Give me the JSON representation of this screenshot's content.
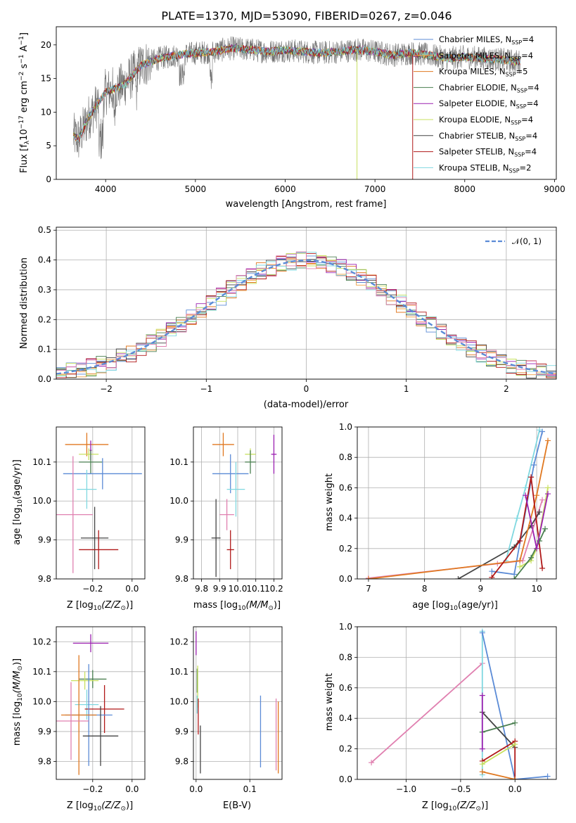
{
  "colors": {
    "chabrier_miles": "#5b8bd6",
    "salpeter_miles": "#f0a040",
    "kroupa_miles": "#e07820",
    "chabrier_elodie": "#4a7f50",
    "salpeter_elodie": "#9b20b0",
    "kroupa_elodie": "#c8e060",
    "chabrier_stelib": "#444444",
    "salpeter_stelib": "#b01818",
    "kroupa_stelib": "#80d8e0",
    "pink": "#e080b0",
    "spec_gray": "#707070",
    "normal_curve": "#5b8bd6"
  },
  "legend_spectrum": [
    {
      "label": "Chabrier MILES, N",
      "sub": "SSP",
      "tail": "=4",
      "color": "#5b8bd6"
    },
    {
      "label": "Salpeter MILES, N",
      "sub": "SSP",
      "tail": "=4",
      "color": "#f0a040"
    },
    {
      "label": "Kroupa MILES, N",
      "sub": "SSP",
      "tail": "=5",
      "color": "#e07820"
    },
    {
      "label": "Chabrier ELODIE, N",
      "sub": "SSP",
      "tail": "=4",
      "color": "#4a7f50"
    },
    {
      "label": "Salpeter ELODIE, N",
      "sub": "SSP",
      "tail": "=4",
      "color": "#9b20b0"
    },
    {
      "label": "Kroupa ELODIE, N",
      "sub": "SSP",
      "tail": "=4",
      "color": "#c8e060"
    },
    {
      "label": "Chabrier STELIB, N",
      "sub": "SSP",
      "tail": "=4",
      "color": "#444444"
    },
    {
      "label": "Salpeter STELIB, N",
      "sub": "SSP",
      "tail": "=4",
      "color": "#b01818"
    },
    {
      "label": "Kroupa STELIB, N",
      "sub": "SSP",
      "tail": "=2",
      "color": "#80d8e0"
    }
  ],
  "chart_data": [
    {
      "id": "spectrum",
      "type": "line",
      "title": "PLATE=1370, MJD=53090, FIBERID=0267, z=0.046",
      "xlabel": "wavelength [Angstrom, rest frame]",
      "ylabel": "Flux [f",
      "ylabel_sub": "λ",
      "ylabel_mid": "10",
      "ylabel_sup1": "−17",
      "ylabel_tail": " erg cm",
      "ylabel_sup2": "−2",
      "ylabel_tail2": " s",
      "ylabel_sup3": "−1",
      "ylabel_tail3": " A",
      "ylabel_sup4": "−1",
      "ylabel_end": "]",
      "xlim": [
        3450,
        9020
      ],
      "ylim": [
        0,
        22.7
      ],
      "xticks": [
        "4000",
        "5000",
        "6000",
        "7000",
        "8000",
        "9000"
      ],
      "xtick_values": [
        4000,
        5000,
        6000,
        7000,
        8000,
        9000
      ],
      "yticks": [
        "0",
        "5",
        "10",
        "15",
        "20"
      ],
      "ytick_values": [
        0,
        5,
        10,
        15,
        20
      ],
      "continuum": [
        [
          3640,
          6.5
        ],
        [
          3700,
          6
        ],
        [
          3800,
          9
        ],
        [
          3900,
          11
        ],
        [
          4000,
          13
        ],
        [
          4100,
          13.5
        ],
        [
          4200,
          14
        ],
        [
          4300,
          15.5
        ],
        [
          4400,
          17
        ],
        [
          4600,
          18
        ],
        [
          4800,
          18.5
        ],
        [
          5000,
          18.8
        ],
        [
          5200,
          19
        ],
        [
          5400,
          19.5
        ],
        [
          5600,
          19.3
        ],
        [
          5800,
          19
        ],
        [
          6000,
          19.2
        ],
        [
          6200,
          19
        ],
        [
          6400,
          18.8
        ],
        [
          6600,
          19
        ],
        [
          6800,
          19.3
        ],
        [
          7000,
          19
        ],
        [
          7200,
          18.5
        ],
        [
          7400,
          18.8
        ],
        [
          7600,
          18.5
        ],
        [
          7800,
          18
        ],
        [
          8000,
          18.2
        ],
        [
          8200,
          18
        ],
        [
          8400,
          17.8
        ],
        [
          8600,
          17.5
        ]
      ]
    },
    {
      "id": "residuals",
      "type": "line",
      "xlabel": "(data-model)/error",
      "ylabel": "Normed distribution",
      "xlim": [
        -2.5,
        2.5
      ],
      "ylim": [
        0,
        0.51
      ],
      "xticks": [
        "−2",
        "−1",
        "0",
        "1",
        "2"
      ],
      "xtick_values": [
        -2,
        -1,
        0,
        1,
        2
      ],
      "yticks": [
        "0.0",
        "0.1",
        "0.2",
        "0.3",
        "0.4",
        "0.5"
      ],
      "ytick_values": [
        0,
        0.1,
        0.2,
        0.3,
        0.4,
        0.5
      ],
      "grid": true,
      "legend": "𝒩(0, 1)",
      "legend_placement": "top-right"
    },
    {
      "id": "age-vs-Z",
      "type": "scatter",
      "xlabel": "Z [log",
      "xlabel_sub": "10",
      "xlabel_tail": "(Z/Z",
      "xlabel_sub2": "⊙",
      "xlabel_end": ")]",
      "ylabel": "age  [log",
      "ylabel_sub": "10",
      "ylabel_tail": "(age/yr)]",
      "xlim": [
        -0.385,
        0.065
      ],
      "ylim": [
        9.8,
        10.19
      ],
      "xticks": [
        "−0.2",
        "0.0"
      ],
      "xtick_values": [
        -0.2,
        0.0
      ],
      "yticks": [
        "9.8",
        "9.9",
        "10.0",
        "10.1"
      ],
      "ytick_values": [
        9.8,
        9.9,
        10.0,
        10.1
      ],
      "grid": true,
      "points": [
        {
          "x": -0.23,
          "y": 10.145,
          "xerr": 0.11,
          "yerr": 0.03,
          "color": "#e07820"
        },
        {
          "x": -0.21,
          "y": 10.13,
          "xerr": 0.005,
          "yerr": 0.025,
          "color": "#9b20b0"
        },
        {
          "x": -0.22,
          "y": 10.12,
          "xerr": 0.05,
          "yerr": 0.015,
          "color": "#c8e060"
        },
        {
          "x": -0.21,
          "y": 10.1,
          "xerr": 0.06,
          "yerr": 0.03,
          "color": "#4a7f50"
        },
        {
          "x": -0.15,
          "y": 10.07,
          "xerr": 0.2,
          "yerr": 0.04,
          "color": "#5b8bd6"
        },
        {
          "x": -0.23,
          "y": 10.03,
          "xerr": 0.05,
          "yerr": 0.05,
          "color": "#80d8e0"
        },
        {
          "x": -0.3,
          "y": 9.965,
          "xerr": 0.1,
          "yerr": 0.15,
          "color": "#e080b0"
        },
        {
          "x": -0.19,
          "y": 9.905,
          "xerr": 0.07,
          "yerr": 0.08,
          "color": "#444444"
        },
        {
          "x": -0.17,
          "y": 9.875,
          "xerr": 0.1,
          "yerr": 0.05,
          "color": "#b01818"
        }
      ]
    },
    {
      "id": "age-vs-mass",
      "type": "scatter",
      "xlabel": "mass [log",
      "xlabel_sub": "10",
      "xlabel_tail": "(M/M",
      "xlabel_sub2": "⊙",
      "xlabel_end": ")]",
      "xlim": [
        9.755,
        10.245
      ],
      "ylim": [
        9.8,
        10.19
      ],
      "xticks": [
        "9.8",
        "9.9",
        "10.0",
        "10.1",
        "10.2"
      ],
      "xtick_values": [
        9.8,
        9.9,
        10.0,
        10.1,
        10.2
      ],
      "yticks": [
        "9.8",
        "9.9",
        "10.0",
        "10.1"
      ],
      "ytick_values": [
        9.8,
        9.9,
        10.0,
        10.1
      ],
      "grid": true,
      "points": [
        {
          "x": 9.92,
          "y": 10.145,
          "xerr": 0.06,
          "yerr": 0.03,
          "color": "#e07820"
        },
        {
          "x": 10.2,
          "y": 10.12,
          "xerr": 0.015,
          "yerr": 0.05,
          "color": "#9b20b0"
        },
        {
          "x": 10.07,
          "y": 10.12,
          "xerr": 0.03,
          "yerr": 0.015,
          "color": "#c8e060"
        },
        {
          "x": 10.07,
          "y": 10.1,
          "xerr": 0.03,
          "yerr": 0.03,
          "color": "#4a7f50"
        },
        {
          "x": 9.96,
          "y": 10.07,
          "xerr": 0.1,
          "yerr": 0.05,
          "color": "#5b8bd6"
        },
        {
          "x": 9.99,
          "y": 10.03,
          "xerr": 0.05,
          "yerr": 0.07,
          "color": "#80d8e0"
        },
        {
          "x": 9.94,
          "y": 9.965,
          "xerr": 0.04,
          "yerr": 0.04,
          "color": "#e080b0"
        },
        {
          "x": 9.88,
          "y": 9.905,
          "xerr": 0.025,
          "yerr": 0.1,
          "color": "#444444"
        },
        {
          "x": 9.96,
          "y": 9.875,
          "xerr": 0.02,
          "yerr": 0.05,
          "color": "#b01818"
        }
      ]
    },
    {
      "id": "massweight-vs-age",
      "type": "line",
      "xlabel": "age  [log",
      "xlabel_sub": "10",
      "xlabel_tail": "(age/yr)]",
      "ylabel": "mass weight",
      "xlim": [
        6.8,
        10.35
      ],
      "ylim": [
        0,
        1
      ],
      "xticks": [
        "7",
        "8",
        "9",
        "10"
      ],
      "xtick_values": [
        7,
        8,
        9,
        10
      ],
      "yticks": [
        "0.0",
        "0.2",
        "0.4",
        "0.6",
        "0.8",
        "1.0"
      ],
      "ytick_values": [
        0,
        0.2,
        0.4,
        0.6,
        0.8,
        1.0
      ],
      "grid": true,
      "series": [
        {
          "color": "#e080b0",
          "points": [
            [
              7.0,
              0.005
            ],
            [
              9.3,
              0.1
            ],
            [
              9.75,
              0.12
            ],
            [
              10.1,
              0.52
            ]
          ]
        },
        {
          "color": "#444444",
          "points": [
            [
              8.6,
              0.0
            ],
            [
              9.6,
              0.21
            ],
            [
              9.9,
              0.35
            ],
            [
              10.05,
              0.44
            ]
          ]
        },
        {
          "color": "#80d8e0",
          "points": [
            [
              9.45,
              0.12
            ],
            [
              9.65,
              0.4
            ],
            [
              9.8,
              0.6
            ],
            [
              10.05,
              0.98
            ]
          ]
        },
        {
          "color": "#5b8bd6",
          "points": [
            [
              9.2,
              0.05
            ],
            [
              9.6,
              0.03
            ],
            [
              9.95,
              0.75
            ],
            [
              10.1,
              0.97
            ]
          ]
        },
        {
          "color": "#e07820",
          "points": [
            [
              7.0,
              0.0
            ],
            [
              9.7,
              0.12
            ],
            [
              10.0,
              0.55
            ],
            [
              10.2,
              0.91
            ]
          ]
        },
        {
          "color": "#b01818",
          "points": [
            [
              9.2,
              0.01
            ],
            [
              9.7,
              0.25
            ],
            [
              9.9,
              0.67
            ],
            [
              10.1,
              0.07
            ]
          ]
        },
        {
          "color": "#c8e060",
          "points": [
            [
              9.7,
              0.08
            ],
            [
              9.9,
              0.12
            ],
            [
              10.0,
              0.2
            ],
            [
              10.2,
              0.6
            ]
          ]
        },
        {
          "color": "#4a7f50",
          "points": [
            [
              9.6,
              0.0
            ],
            [
              9.9,
              0.14
            ],
            [
              10.05,
              0.25
            ],
            [
              10.15,
              0.33
            ]
          ]
        },
        {
          "color": "#9b20b0",
          "points": [
            [
              9.8,
              0.55
            ],
            [
              10.0,
              0.2
            ],
            [
              10.2,
              0.56
            ]
          ]
        }
      ]
    },
    {
      "id": "mass-vs-Z",
      "type": "scatter",
      "xlabel": "Z [log",
      "xlabel_sub": "10",
      "xlabel_tail": "(Z/Z",
      "xlabel_sub2": "⊙",
      "xlabel_end": ")]",
      "ylabel": "mass [log",
      "ylabel_sub": "10",
      "ylabel_tail": "(M/M",
      "ylabel_sub2": "⊙",
      "ylabel_end": ")]",
      "xlim": [
        -0.385,
        0.065
      ],
      "ylim": [
        9.74,
        10.25
      ],
      "xticks": [
        "−0.2",
        "0.0"
      ],
      "xtick_values": [
        -0.2,
        0.0
      ],
      "yticks": [
        "9.8",
        "9.9",
        "10.0",
        "10.1",
        "10.2"
      ],
      "ytick_values": [
        9.8,
        9.9,
        10.0,
        10.1,
        10.2
      ],
      "grid": true,
      "points": [
        {
          "x": -0.21,
          "y": 10.195,
          "xerr": 0.09,
          "yerr": 0.03,
          "color": "#9b20b0"
        },
        {
          "x": -0.2,
          "y": 10.075,
          "xerr": 0.07,
          "yerr": 0.03,
          "color": "#4a7f50"
        },
        {
          "x": -0.24,
          "y": 10.07,
          "xerr": 0.07,
          "yerr": 0.03,
          "color": "#c8e060"
        },
        {
          "x": -0.23,
          "y": 9.99,
          "xerr": 0.06,
          "yerr": 0.05,
          "color": "#80d8e0"
        },
        {
          "x": -0.14,
          "y": 9.975,
          "xerr": 0.1,
          "yerr": 0.08,
          "color": "#b01818"
        },
        {
          "x": -0.22,
          "y": 9.955,
          "xerr": 0.12,
          "yerr": 0.17,
          "color": "#5b8bd6"
        },
        {
          "x": -0.27,
          "y": 9.955,
          "xerr": 0.09,
          "yerr": 0.2,
          "color": "#e07820"
        },
        {
          "x": -0.31,
          "y": 9.935,
          "xerr": 0.09,
          "yerr": 0.13,
          "color": "#e080b0"
        },
        {
          "x": -0.16,
          "y": 9.885,
          "xerr": 0.09,
          "yerr": 0.1,
          "color": "#444444"
        }
      ]
    },
    {
      "id": "mass-vs-EBV",
      "type": "scatter",
      "xlabel": "E(B-V)",
      "xlim": [
        -0.005,
        0.16
      ],
      "ylim": [
        9.74,
        10.25
      ],
      "xticks": [
        "0.0",
        "0.1"
      ],
      "xtick_values": [
        0.0,
        0.1
      ],
      "yticks": [
        "9.8",
        "9.9",
        "10.0",
        "10.1",
        "10.2"
      ],
      "ytick_values": [
        9.8,
        9.9,
        10.0,
        10.1,
        10.2
      ],
      "grid": true,
      "points": [
        {
          "x": 0.0,
          "y": 10.195,
          "xerr": 0.0,
          "yerr": 0.04,
          "color": "#9b20b0"
        },
        {
          "x": 0.002,
          "y": 10.07,
          "xerr": 0.0,
          "yerr": 0.04,
          "color": "#4a7f50"
        },
        {
          "x": 0.003,
          "y": 10.05,
          "xerr": 0.0,
          "yerr": 0.07,
          "color": "#c8e060"
        },
        {
          "x": 0.002,
          "y": 9.99,
          "xerr": 0.0,
          "yerr": 0.03,
          "color": "#80d8e0"
        },
        {
          "x": 0.004,
          "y": 9.95,
          "xerr": 0.0,
          "yerr": 0.06,
          "color": "#b01818"
        },
        {
          "x": 0.008,
          "y": 9.84,
          "xerr": 0.0,
          "yerr": 0.08,
          "color": "#444444"
        },
        {
          "x": 0.12,
          "y": 9.9,
          "xerr": 0.0,
          "yerr": 0.12,
          "color": "#5b8bd6"
        },
        {
          "x": 0.149,
          "y": 9.89,
          "xerr": 0.0,
          "yerr": 0.12,
          "color": "#e080b0"
        },
        {
          "x": 0.153,
          "y": 9.88,
          "xerr": 0.0,
          "yerr": 0.12,
          "color": "#e07820"
        }
      ]
    },
    {
      "id": "massweight-vs-Z",
      "type": "line",
      "xlabel": "Z [log",
      "xlabel_sub": "10",
      "xlabel_tail": "(Z/Z",
      "xlabel_sub2": "⊙",
      "xlabel_end": ")]",
      "ylabel": "mass weight",
      "xlim": [
        -1.45,
        0.38
      ],
      "ylim": [
        0,
        1
      ],
      "xticks": [
        "−1.0",
        "−0.5",
        "0.0"
      ],
      "xtick_values": [
        -1.0,
        -0.5,
        0.0
      ],
      "yticks": [
        "0.0",
        "0.2",
        "0.4",
        "0.6",
        "0.8",
        "1.0"
      ],
      "ytick_values": [
        0,
        0.2,
        0.4,
        0.6,
        0.8,
        1.0
      ],
      "grid": true,
      "series": [
        {
          "color": "#e080b0",
          "points": [
            [
              -1.32,
              0.11
            ],
            [
              -0.3,
              0.76
            ]
          ]
        },
        {
          "color": "#80d8e0",
          "points": [
            [
              -0.3,
              0.97
            ],
            [
              -0.3,
              0.03
            ]
          ]
        },
        {
          "color": "#5b8bd6",
          "points": [
            [
              -0.3,
              0.96
            ],
            [
              0.0,
              0.0
            ],
            [
              0.3,
              0.02
            ]
          ]
        },
        {
          "color": "#444444",
          "points": [
            [
              -0.3,
              0.44
            ],
            [
              0.0,
              0.21
            ]
          ]
        },
        {
          "color": "#4a7f50",
          "points": [
            [
              -0.3,
              0.31
            ],
            [
              0.0,
              0.37
            ]
          ]
        },
        {
          "color": "#b01818",
          "points": [
            [
              -0.3,
              0.12
            ],
            [
              0.0,
              0.25
            ],
            [
              0.0,
              0.0
            ]
          ]
        },
        {
          "color": "#9b20b0",
          "points": [
            [
              -0.3,
              0.55
            ],
            [
              -0.3,
              0.2
            ]
          ]
        },
        {
          "color": "#e07820",
          "points": [
            [
              -0.3,
              0.05
            ],
            [
              0.0,
              0.0
            ]
          ]
        },
        {
          "color": "#c8e060",
          "points": [
            [
              -0.3,
              0.1
            ],
            [
              0.0,
              0.23
            ]
          ]
        }
      ]
    }
  ]
}
